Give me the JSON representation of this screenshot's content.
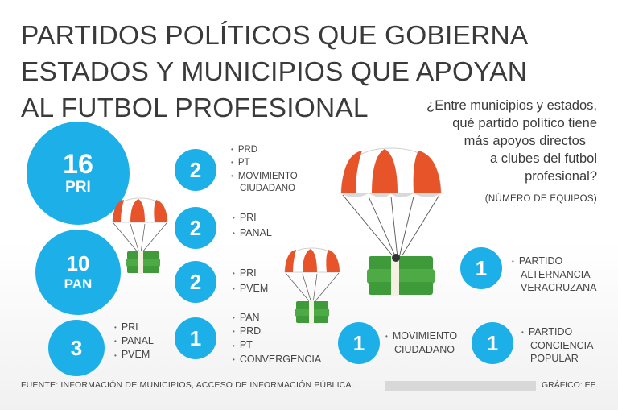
{
  "title": {
    "line1": "PARTIDOS POLÍTICOS QUE GOBIERNA",
    "line2": "ESTADOS Y MUNICIPIOS QUE APOYAN",
    "line3": "AL FUTBOL PROFESIONAL"
  },
  "question": {
    "line1": "¿Entre municipios y estados,",
    "line2": "qué partido político tiene",
    "line3": "más apoyos directos",
    "line4": "a clubes del futbol",
    "line5": "profesional?",
    "unit": "(NÚMERO DE EQUIPOS)"
  },
  "colors": {
    "accent": "#1db0e8",
    "parachute_red": "#e8542a",
    "money_green": "#3f9b3a"
  },
  "big_circles": [
    {
      "value": "16",
      "label": "PRI"
    },
    {
      "value": "10",
      "label": "PAN"
    }
  ],
  "groups": [
    {
      "value": "3",
      "parties": [
        "PRI",
        "PANAL",
        "PVEM"
      ]
    },
    {
      "value": "2",
      "parties": [
        "PRD",
        "PT",
        "MOVIMIENTO",
        "CIUDADANO"
      ]
    },
    {
      "value": "2",
      "parties": [
        "PRI",
        "PANAL"
      ]
    },
    {
      "value": "2",
      "parties": [
        "PRI",
        "PVEM"
      ]
    },
    {
      "value": "1",
      "parties": [
        "PAN",
        "PRD",
        "PT",
        "CONVERGENCIA"
      ]
    },
    {
      "value": "1",
      "parties": [
        "MOVIMIENTO",
        "CIUDADANO"
      ]
    },
    {
      "value": "1",
      "parties": [
        "PARTIDO",
        "ALTERNANCIA",
        "VERACRUZANA"
      ]
    },
    {
      "value": "1",
      "parties": [
        "PARTIDO",
        "CONCIENCIA",
        "POPULAR"
      ]
    }
  ],
  "footer": {
    "source": "FUENTE: INFORMACIÓN DE MUNICIPIOS, ACCESO DE INFORMACIÓN PÚBLICA.",
    "credit": "GRÁFICO: EE."
  }
}
